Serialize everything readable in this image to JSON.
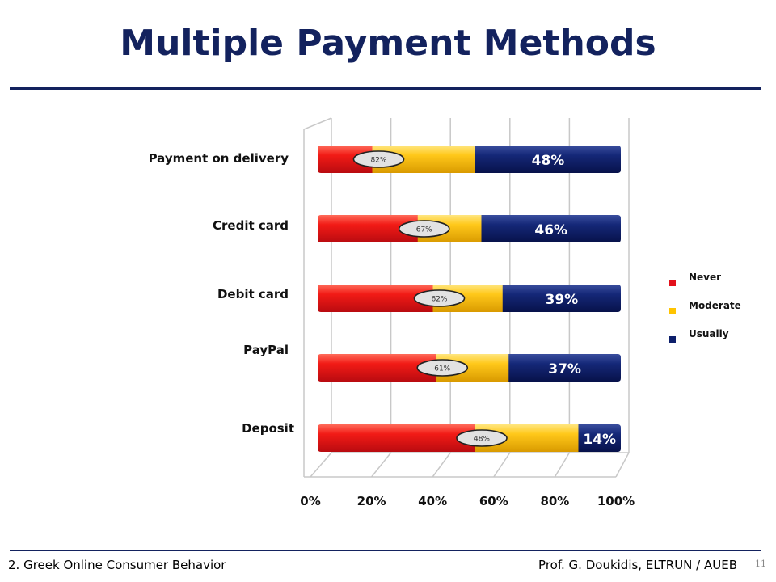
{
  "slide": {
    "title": "Multiple Payment Methods",
    "footer_left": "2. Greek Online Consumer Behavior",
    "footer_right": "Prof. G. Doukidis, ELTRUN / AUEB",
    "page_number": "11"
  },
  "colors": {
    "title": "#13225e",
    "never": "#e3111c",
    "moderate": "#ffc400",
    "usually": "#0d1f6b"
  },
  "chart_data": {
    "type": "bar",
    "orientation": "horizontal",
    "stacked": true,
    "percent_stacked": true,
    "categories": [
      "Payment on delivery",
      "Credit card",
      "Debit card",
      "PayPal",
      "Deposit"
    ],
    "series": [
      {
        "name": "Never",
        "values": [
          18,
          33,
          38,
          39,
          52
        ]
      },
      {
        "name": "Moderate",
        "values": [
          34,
          21,
          23,
          24,
          34
        ]
      },
      {
        "name": "Usually",
        "values": [
          48,
          46,
          39,
          37,
          14
        ]
      }
    ],
    "data_labels": {
      "usually": [
        "48%",
        "46%",
        "39%",
        "37%",
        "14%"
      ],
      "combined": [
        "82%",
        "67%",
        "62%",
        "61%",
        "48%"
      ]
    },
    "x_ticks": [
      "0%",
      "20%",
      "40%",
      "60%",
      "80%",
      "100%"
    ],
    "xlim": [
      0,
      100
    ],
    "grid": true,
    "legend_position": "right"
  }
}
